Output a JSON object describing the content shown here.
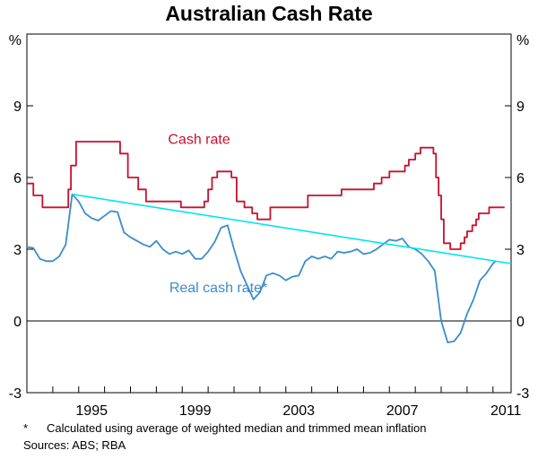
{
  "chart_data": {
    "type": "line",
    "title": "Australian Cash Rate",
    "y_unit_left": "%",
    "y_unit_right": "%",
    "ylim": [
      -3,
      12
    ],
    "y_ticks": [
      -3,
      0,
      3,
      6,
      9
    ],
    "y_tick_labels": [
      "-3",
      "0",
      "3",
      "6",
      "9"
    ],
    "xlim": [
      1993.0,
      2011.7
    ],
    "x_ticks": [
      1995,
      1999,
      2003,
      2007,
      2011
    ],
    "x_tick_labels": [
      "1995",
      "1999",
      "2003",
      "2007",
      "2011"
    ],
    "grid": false,
    "series": [
      {
        "name": "Cash rate",
        "color": "#c8102e",
        "style": "step",
        "points": [
          [
            1993.0,
            5.75
          ],
          [
            1993.25,
            5.25
          ],
          [
            1993.6,
            4.75
          ],
          [
            1994.6,
            5.5
          ],
          [
            1994.7,
            6.5
          ],
          [
            1994.9,
            7.5
          ],
          [
            1996.6,
            7.0
          ],
          [
            1996.9,
            6.0
          ],
          [
            1997.3,
            5.5
          ],
          [
            1997.6,
            5.0
          ],
          [
            1998.95,
            4.75
          ],
          [
            1999.85,
            5.0
          ],
          [
            2000.0,
            5.5
          ],
          [
            2000.15,
            6.0
          ],
          [
            2000.35,
            6.25
          ],
          [
            2000.9,
            6.0
          ],
          [
            2001.1,
            5.0
          ],
          [
            2001.4,
            4.75
          ],
          [
            2001.7,
            4.5
          ],
          [
            2001.9,
            4.25
          ],
          [
            2002.4,
            4.75
          ],
          [
            2003.85,
            5.25
          ],
          [
            2005.15,
            5.5
          ],
          [
            2006.4,
            5.75
          ],
          [
            2006.7,
            6.0
          ],
          [
            2007.0,
            6.25
          ],
          [
            2007.6,
            6.5
          ],
          [
            2007.75,
            6.75
          ],
          [
            2008.0,
            7.0
          ],
          [
            2008.2,
            7.25
          ],
          [
            2008.7,
            7.0
          ],
          [
            2008.8,
            6.0
          ],
          [
            2008.9,
            5.25
          ],
          [
            2009.0,
            4.25
          ],
          [
            2009.1,
            3.25
          ],
          [
            2009.35,
            3.0
          ],
          [
            2009.75,
            3.25
          ],
          [
            2009.9,
            3.5
          ],
          [
            2010.0,
            3.75
          ],
          [
            2010.2,
            4.0
          ],
          [
            2010.35,
            4.25
          ],
          [
            2010.45,
            4.5
          ],
          [
            2010.85,
            4.75
          ],
          [
            2011.45,
            4.75
          ]
        ]
      },
      {
        "name": "Real cash rate*",
        "color": "#3a8ccc",
        "style": "line",
        "points": [
          [
            1993.0,
            3.1
          ],
          [
            1993.25,
            3.05
          ],
          [
            1993.5,
            2.6
          ],
          [
            1993.75,
            2.5
          ],
          [
            1994.0,
            2.5
          ],
          [
            1994.25,
            2.7
          ],
          [
            1994.5,
            3.2
          ],
          [
            1994.75,
            5.3
          ],
          [
            1995.0,
            5.0
          ],
          [
            1995.25,
            4.5
          ],
          [
            1995.5,
            4.3
          ],
          [
            1995.75,
            4.2
          ],
          [
            1996.0,
            4.4
          ],
          [
            1996.25,
            4.6
          ],
          [
            1996.5,
            4.55
          ],
          [
            1996.75,
            3.7
          ],
          [
            1997.0,
            3.5
          ],
          [
            1997.25,
            3.35
          ],
          [
            1997.5,
            3.2
          ],
          [
            1997.75,
            3.1
          ],
          [
            1998.0,
            3.35
          ],
          [
            1998.25,
            3.0
          ],
          [
            1998.5,
            2.8
          ],
          [
            1998.75,
            2.9
          ],
          [
            1999.0,
            2.8
          ],
          [
            1999.25,
            2.95
          ],
          [
            1999.5,
            2.6
          ],
          [
            1999.75,
            2.6
          ],
          [
            2000.0,
            2.9
          ],
          [
            2000.25,
            3.3
          ],
          [
            2000.5,
            3.9
          ],
          [
            2000.75,
            4.0
          ],
          [
            2001.0,
            3.0
          ],
          [
            2001.25,
            2.1
          ],
          [
            2001.5,
            1.5
          ],
          [
            2001.75,
            0.9
          ],
          [
            2002.0,
            1.2
          ],
          [
            2002.25,
            1.9
          ],
          [
            2002.5,
            2.0
          ],
          [
            2002.75,
            1.9
          ],
          [
            2003.0,
            1.7
          ],
          [
            2003.25,
            1.85
          ],
          [
            2003.5,
            1.9
          ],
          [
            2003.75,
            2.5
          ],
          [
            2004.0,
            2.7
          ],
          [
            2004.25,
            2.6
          ],
          [
            2004.5,
            2.7
          ],
          [
            2004.75,
            2.6
          ],
          [
            2005.0,
            2.9
          ],
          [
            2005.25,
            2.85
          ],
          [
            2005.5,
            2.9
          ],
          [
            2005.75,
            3.0
          ],
          [
            2006.0,
            2.8
          ],
          [
            2006.25,
            2.85
          ],
          [
            2006.5,
            3.0
          ],
          [
            2006.75,
            3.2
          ],
          [
            2007.0,
            3.4
          ],
          [
            2007.25,
            3.35
          ],
          [
            2007.5,
            3.45
          ],
          [
            2007.75,
            3.1
          ],
          [
            2008.0,
            3.0
          ],
          [
            2008.25,
            2.8
          ],
          [
            2008.5,
            2.5
          ],
          [
            2008.75,
            2.1
          ],
          [
            2009.0,
            0.0
          ],
          [
            2009.25,
            -0.9
          ],
          [
            2009.5,
            -0.85
          ],
          [
            2009.75,
            -0.5
          ],
          [
            2010.0,
            0.3
          ],
          [
            2010.25,
            0.9
          ],
          [
            2010.5,
            1.7
          ],
          [
            2010.75,
            2.0
          ],
          [
            2011.0,
            2.4
          ],
          [
            2011.1,
            2.5
          ]
        ]
      },
      {
        "color": "#00e5ee",
        "style": "line",
        "points": [
          [
            1994.75,
            5.3
          ],
          [
            2011.7,
            2.4
          ]
        ]
      }
    ],
    "annotations": [
      {
        "text": "Cash rate",
        "x": 1998.45,
        "y": 7.4,
        "color": "#c8102e",
        "series": 0
      },
      {
        "text": "Real cash rate*",
        "x": 1998.5,
        "y": 1.2,
        "color": "#3a8ccc",
        "series": 1
      }
    ]
  },
  "footnote": {
    "marker": "*",
    "text": "Calculated using average of weighted median and trimmed mean inflation"
  },
  "sources": "Sources: ABS; RBA"
}
